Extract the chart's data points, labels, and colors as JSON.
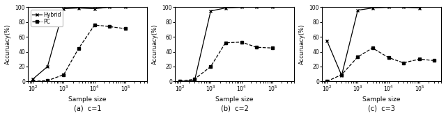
{
  "x_values": [
    100,
    300,
    1000,
    3000,
    10000,
    30000,
    100000
  ],
  "c1": {
    "hybrid": [
      3,
      20,
      98,
      99,
      98,
      100,
      100
    ],
    "pc": [
      0,
      1,
      9,
      44,
      76,
      74,
      71
    ]
  },
  "c2": {
    "hybrid": [
      0,
      1,
      95,
      99,
      100,
      100,
      100
    ],
    "pc": [
      0,
      3,
      20,
      52,
      53,
      46,
      45
    ]
  },
  "c3": {
    "hybrid": [
      55,
      8,
      96,
      99,
      100,
      100,
      99
    ],
    "pc": [
      0,
      9,
      33,
      45,
      32,
      25,
      30,
      28
    ]
  },
  "x_values_c3_pc": [
    100,
    300,
    1000,
    3000,
    10000,
    30000,
    100000,
    300000
  ],
  "xlabel": "Sample size",
  "ylabel": "Accuruacy(%)",
  "subtitles": [
    "(a)  c=1",
    "(b)  c=2",
    "(c)  c=3"
  ],
  "legend_labels": [
    "Hybrid",
    "PC"
  ],
  "ylim": [
    0,
    100
  ],
  "hybrid_color": "black",
  "pc_color": "black",
  "hybrid_marker": "x",
  "pc_marker": "s",
  "hybrid_linestyle": "-",
  "pc_linestyle": "--",
  "figsize": [
    6.4,
    1.63
  ],
  "dpi": 100
}
